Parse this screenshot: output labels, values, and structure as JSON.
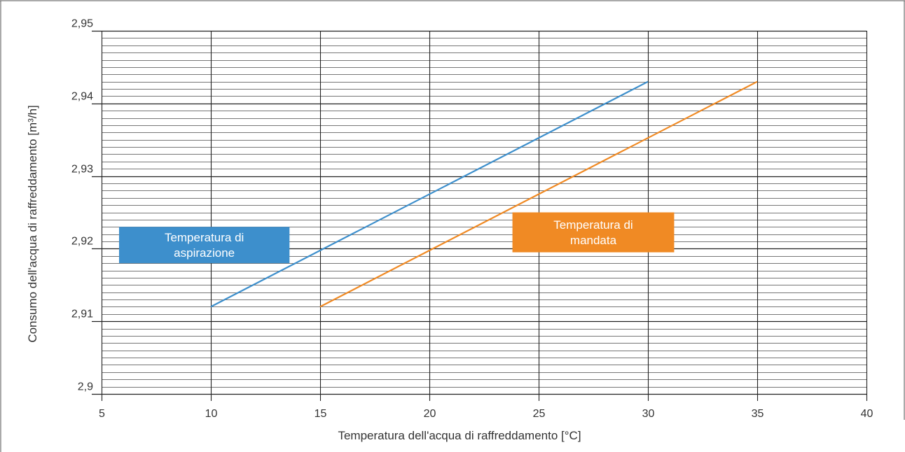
{
  "chart_data": {
    "type": "line",
    "xlabel": "Temperatura dell'acqua di raffreddamento [°C]",
    "ylabel": "Consumo dell'acqua di raffreddamento [m³/h]",
    "xlim": [
      5,
      40
    ],
    "ylim": [
      2.9,
      2.95
    ],
    "x_ticks": [
      5,
      10,
      15,
      20,
      25,
      30,
      35,
      40
    ],
    "x_tick_labels": [
      "5",
      "10",
      "15",
      "20",
      "25",
      "30",
      "35",
      "40"
    ],
    "y_ticks": [
      2.9,
      2.91,
      2.92,
      2.93,
      2.94,
      2.95
    ],
    "y_tick_labels": [
      "2,9",
      "2,91",
      "2,92",
      "2,93",
      "2,94",
      "2,95"
    ],
    "y_minor_step": 0.001,
    "grid": true,
    "legend": "none",
    "series": [
      {
        "name": "Temperatura di aspirazione",
        "color": "#3d8fcc",
        "x": [
          10,
          30
        ],
        "y": [
          2.912,
          2.943
        ]
      },
      {
        "name": "Temperatura di mandata",
        "color": "#f08a24",
        "x": [
          15,
          35
        ],
        "y": [
          2.912,
          2.943
        ]
      }
    ],
    "annotations": [
      {
        "lines": [
          "Temperatura di",
          "aspirazione"
        ],
        "color": "#3d8fcc",
        "series": 0
      },
      {
        "lines": [
          "Temperatura di",
          "mandata"
        ],
        "color": "#f08a24",
        "series": 1
      }
    ]
  }
}
